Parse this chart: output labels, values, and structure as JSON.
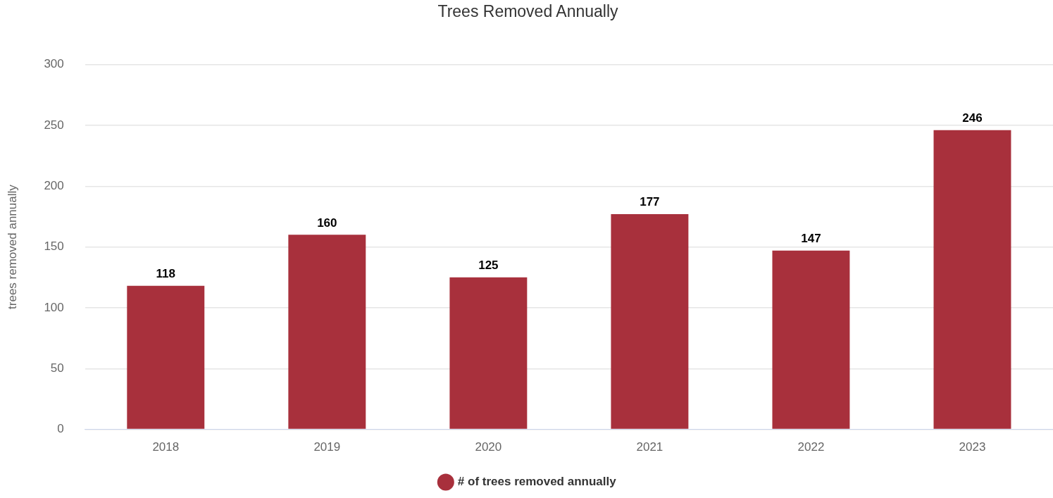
{
  "chart_data": {
    "type": "bar",
    "title": "Trees Removed Annually",
    "ylabel": "trees removed annually",
    "categories": [
      "2018",
      "2019",
      "2020",
      "2021",
      "2022",
      "2023"
    ],
    "series": [
      {
        "name": "# of trees removed annually",
        "color": "#a8303c",
        "values": [
          118,
          160,
          125,
          177,
          147,
          246
        ]
      }
    ],
    "ylim": [
      0,
      300
    ],
    "yticks": [
      0,
      50,
      100,
      150,
      200,
      250,
      300
    ],
    "grid": "y",
    "legend": "bottom",
    "data_labels": true
  }
}
